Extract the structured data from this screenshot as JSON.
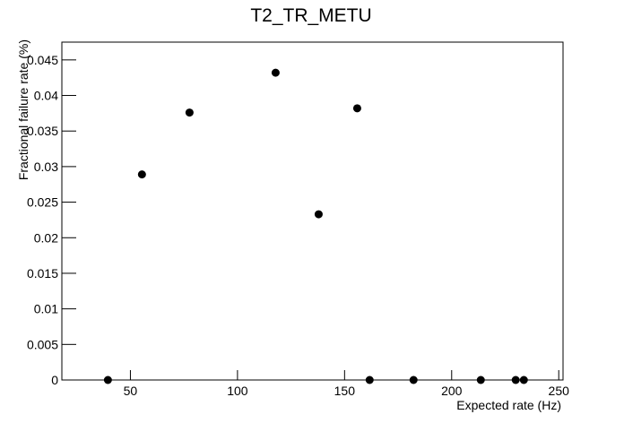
{
  "chart_data": {
    "type": "scatter",
    "title": "T2_TR_METU",
    "x_label": "Expected rate (Hz)",
    "y_label": "Fractional failure rate (%)",
    "color": "#000000",
    "x": [
      39.5,
      55.4,
      77.6,
      117.8,
      137.9,
      155.9,
      161.7,
      182.2,
      213.6,
      229.9,
      233.7
    ],
    "values": [
      0,
      0.0289,
      0.0376,
      0.0432,
      0.0233,
      0.0382,
      0,
      0,
      0,
      0,
      0
    ],
    "xlim": [
      18,
      252
    ],
    "ylim": [
      0,
      0.0475
    ],
    "xticks": [
      50,
      100,
      150,
      200,
      250
    ],
    "yticks": [
      0,
      0.005,
      0.01,
      0.015,
      0.02,
      0.025,
      0.03,
      0.035,
      0.04,
      0.045
    ]
  }
}
